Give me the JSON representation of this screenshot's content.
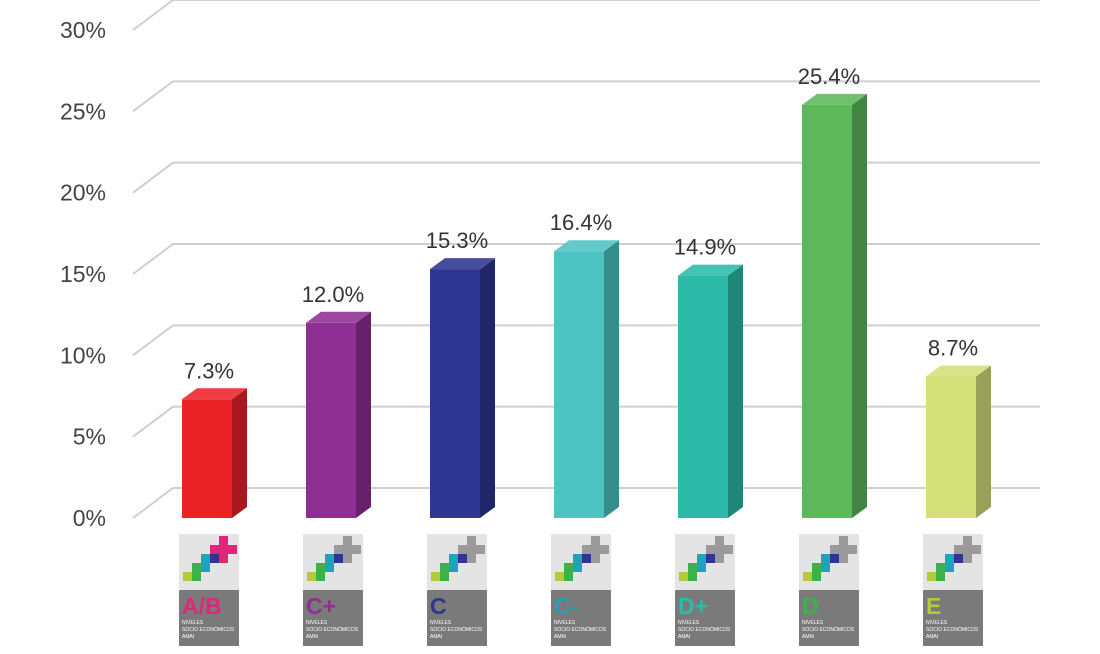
{
  "chart_data": {
    "type": "bar",
    "categories": [
      "A/B",
      "C+",
      "C",
      "C-",
      "D+",
      "D",
      "E"
    ],
    "values": [
      7.3,
      12.0,
      15.3,
      16.4,
      14.9,
      25.4,
      8.7
    ],
    "data_labels": [
      "7.3%",
      "12.0%",
      "15.3%",
      "16.4%",
      "14.9%",
      "25.4%",
      "8.7%"
    ],
    "bar_colors": [
      "#ec2229",
      "#8f2e93",
      "#2e3592",
      "#4dc4c2",
      "#2bbba8",
      "#5cb85a",
      "#d4e07a"
    ],
    "category_colors": [
      "#e0267a",
      "#8f2e93",
      "#2e3592",
      "#1fa3b8",
      "#2bbba8",
      "#3bb34a",
      "#b7c93a"
    ],
    "y_ticks": [
      "0%",
      "5%",
      "10%",
      "15%",
      "20%",
      "25%",
      "30%"
    ],
    "ylim": [
      0,
      30
    ],
    "grid": true,
    "style": "3d-bars",
    "badge_text_lines": [
      "NIVELES",
      "SOCIO ECONÓMICOS",
      "AMAI"
    ]
  }
}
